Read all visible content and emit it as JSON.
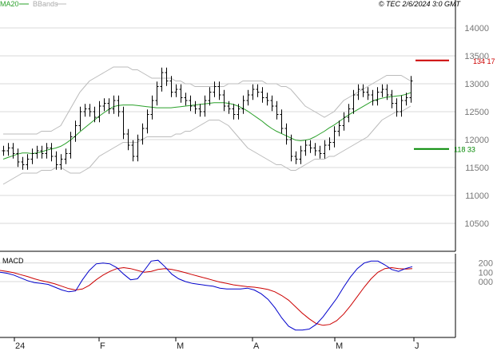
{
  "header": {
    "legend_ma": "MA20",
    "legend_bb": "BBands",
    "timestamp": "© TEC 2/6/2024 3:0 GMT"
  },
  "colors": {
    "ma20": "#2aa02a",
    "bbands": "#bbbbbb",
    "bars": "#000000",
    "resistance": "#cc0000",
    "support": "#008800",
    "macd": "#0000cc",
    "signal": "#cc0000",
    "grid": "#d8d8d8",
    "frame": "#000000"
  },
  "chart_data": [
    {
      "type": "ohlc",
      "title": "",
      "ylim": [
        10000,
        14500
      ],
      "y_ticks": [
        10500,
        11000,
        11500,
        12000,
        12500,
        13000,
        13500,
        14000
      ],
      "y_tick_labels": [
        "10500",
        "11000",
        "11500",
        "12000",
        "12500",
        "13000",
        "13500",
        "14000"
      ],
      "x_tick_labels": [
        "24",
        "F",
        "M",
        "A",
        "M",
        "J"
      ],
      "legend": [
        "MA20",
        "BBands"
      ],
      "annotations": [
        {
          "name": "resistance",
          "value": 13417,
          "label": "134 17",
          "color": "#cc0000"
        },
        {
          "name": "support",
          "value": 11833,
          "label": "118 33",
          "color": "#008800"
        }
      ],
      "closes": [
        11800,
        11850,
        11750,
        11600,
        11550,
        11650,
        11750,
        11800,
        11750,
        11850,
        11700,
        11550,
        11650,
        11750,
        12050,
        12250,
        12500,
        12550,
        12500,
        12400,
        12600,
        12650,
        12550,
        12700,
        12500,
        12100,
        11900,
        11700,
        12000,
        12200,
        12450,
        12700,
        12950,
        13200,
        13050,
        12850,
        12900,
        12750,
        12700,
        12600,
        12550,
        12500,
        12700,
        12850,
        12950,
        12800,
        12600,
        12550,
        12450,
        12550,
        12700,
        12800,
        12900,
        12850,
        12750,
        12700,
        12600,
        12450,
        12200,
        12000,
        11700,
        11650,
        11800,
        11900,
        11850,
        11800,
        11750,
        11900,
        11950,
        12150,
        12250,
        12400,
        12550,
        12800,
        12900,
        12850,
        12800,
        12700,
        12850,
        12900,
        12800,
        12650,
        12500,
        12700,
        12750,
        13050
      ],
      "ma20": [
        11650,
        11680,
        11710,
        11740,
        11760,
        11760,
        11750,
        11760,
        11780,
        11810,
        11830,
        11850,
        11880,
        11930,
        11990,
        12060,
        12140,
        12210,
        12280,
        12350,
        12420,
        12480,
        12540,
        12590,
        12610,
        12620,
        12620,
        12620,
        12610,
        12600,
        12590,
        12580,
        12570,
        12570,
        12570,
        12570,
        12580,
        12590,
        12600,
        12610,
        12620,
        12630,
        12640,
        12650,
        12660,
        12660,
        12660,
        12650,
        12630,
        12600,
        12560,
        12510,
        12450,
        12390,
        12330,
        12260,
        12200,
        12150,
        12110,
        12070,
        12030,
        11990,
        11980,
        11990,
        12010,
        12050,
        12100,
        12150,
        12210,
        12260,
        12320,
        12380,
        12440,
        12490,
        12540,
        12590,
        12640,
        12690,
        12720,
        12740,
        12760,
        12770,
        12780,
        12790,
        12810,
        12840
      ],
      "bb_upper": [
        12100,
        12100,
        12100,
        12100,
        12100,
        12100,
        12100,
        12100,
        12150,
        12150,
        12150,
        12200,
        12250,
        12400,
        12550,
        12700,
        12850,
        12950,
        13050,
        13100,
        13150,
        13200,
        13250,
        13300,
        13300,
        13300,
        13300,
        13250,
        13250,
        13200,
        13150,
        13100,
        13100,
        13100,
        13100,
        13100,
        13050,
        13050,
        13000,
        13000,
        12950,
        12950,
        12950,
        12950,
        12950,
        12950,
        12950,
        13000,
        13000,
        13000,
        13050,
        13050,
        13050,
        13050,
        13050,
        13000,
        13000,
        13000,
        12950,
        12950,
        12900,
        12800,
        12700,
        12600,
        12550,
        12500,
        12450,
        12400,
        12450,
        12500,
        12600,
        12700,
        12750,
        12800,
        12850,
        12900,
        12950,
        13000,
        13050,
        13100,
        13150,
        13150,
        13150,
        13150,
        13100,
        13050
      ],
      "bb_lower": [
        11200,
        11250,
        11300,
        11350,
        11400,
        11400,
        11400,
        11400,
        11450,
        11450,
        11450,
        11500,
        11500,
        11450,
        11400,
        11400,
        11400,
        11450,
        11500,
        11600,
        11700,
        11750,
        11800,
        11850,
        11900,
        11950,
        11950,
        11950,
        11950,
        12000,
        12050,
        12050,
        12050,
        12050,
        12050,
        12050,
        12100,
        12100,
        12150,
        12150,
        12200,
        12250,
        12300,
        12350,
        12350,
        12350,
        12300,
        12250,
        12150,
        12050,
        11950,
        11850,
        11800,
        11750,
        11700,
        11650,
        11600,
        11550,
        11550,
        11500,
        11450,
        11450,
        11500,
        11550,
        11600,
        11650,
        11650,
        11650,
        11700,
        11700,
        11750,
        11800,
        11850,
        11900,
        11950,
        12000,
        12050,
        12150,
        12250,
        12350,
        12400,
        12450,
        12500,
        12500,
        12550,
        12600
      ]
    },
    {
      "type": "line",
      "title": "MACD",
      "ylim": [
        -600,
        300
      ],
      "y_ticks": [
        200,
        100,
        0
      ],
      "y_tick_labels": [
        "200",
        "100",
        "000"
      ],
      "series": [
        {
          "name": "MACD",
          "values": [
            100,
            90,
            70,
            40,
            10,
            -10,
            -20,
            -30,
            -60,
            -90,
            -110,
            -100,
            20,
            120,
            190,
            200,
            190,
            150,
            80,
            20,
            30,
            120,
            220,
            230,
            160,
            80,
            30,
            0,
            -20,
            -30,
            -40,
            -50,
            -70,
            -80,
            -80,
            -80,
            -70,
            -90,
            -130,
            -190,
            -280,
            -390,
            -480,
            -520,
            -520,
            -510,
            -460,
            -380,
            -280,
            -180,
            -60,
            50,
            140,
            200,
            220,
            220,
            180,
            130,
            110,
            140,
            160
          ]
        },
        {
          "name": "Signal",
          "values": [
            120,
            110,
            95,
            75,
            55,
            30,
            10,
            -5,
            -25,
            -50,
            -75,
            -90,
            -80,
            -40,
            20,
            70,
            110,
            140,
            150,
            140,
            120,
            100,
            110,
            130,
            140,
            130,
            115,
            95,
            75,
            55,
            35,
            15,
            -5,
            -20,
            -35,
            -45,
            -55,
            -60,
            -70,
            -85,
            -110,
            -150,
            -200,
            -270,
            -340,
            -400,
            -450,
            -470,
            -460,
            -420,
            -350,
            -260,
            -160,
            -60,
            30,
            100,
            140,
            150,
            140,
            135,
            140
          ]
        }
      ]
    }
  ]
}
